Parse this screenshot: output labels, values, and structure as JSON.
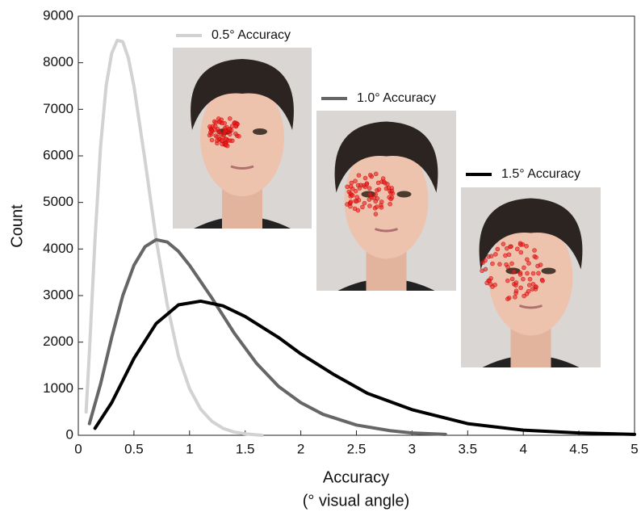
{
  "chart_data": {
    "type": "line",
    "ylabel": "Count",
    "xlabel": "Accuracy",
    "xlabel_note": "(° visual angle)",
    "xlim": [
      0,
      5
    ],
    "ylim": [
      0,
      9000
    ],
    "xticks": [
      0,
      0.5,
      1,
      1.5,
      2,
      2.5,
      3,
      3.5,
      4,
      4.5,
      5
    ],
    "yticks": [
      0,
      1000,
      2000,
      3000,
      4000,
      5000,
      6000,
      7000,
      8000,
      9000
    ],
    "grid": false,
    "series": [
      {
        "name": "0.5° Accuracy",
        "color": "#d2d2d2",
        "x": [
          0.07,
          0.1,
          0.15,
          0.2,
          0.25,
          0.3,
          0.35,
          0.4,
          0.45,
          0.5,
          0.6,
          0.7,
          0.8,
          0.9,
          1.0,
          1.1,
          1.2,
          1.3,
          1.4,
          1.5,
          1.65
        ],
        "values": [
          500,
          1800,
          4200,
          6200,
          7500,
          8200,
          8480,
          8450,
          8100,
          7500,
          5900,
          4200,
          2800,
          1700,
          1000,
          560,
          300,
          150,
          70,
          30,
          0
        ]
      },
      {
        "name": "1.0° Accuracy",
        "color": "#666666",
        "x": [
          0.1,
          0.2,
          0.3,
          0.4,
          0.5,
          0.6,
          0.7,
          0.8,
          0.9,
          1.0,
          1.2,
          1.4,
          1.6,
          1.8,
          2.0,
          2.2,
          2.5,
          2.8,
          3.0,
          3.3
        ],
        "values": [
          250,
          1100,
          2100,
          3000,
          3650,
          4050,
          4200,
          4150,
          3950,
          3650,
          2950,
          2200,
          1550,
          1050,
          700,
          450,
          220,
          100,
          50,
          20
        ]
      },
      {
        "name": "1.5° Accuracy",
        "color": "#000000",
        "x": [
          0.15,
          0.3,
          0.5,
          0.7,
          0.9,
          1.1,
          1.3,
          1.5,
          1.8,
          2.0,
          2.3,
          2.6,
          3.0,
          3.5,
          4.0,
          4.5,
          5.0
        ],
        "values": [
          150,
          700,
          1650,
          2400,
          2800,
          2880,
          2780,
          2550,
          2100,
          1750,
          1300,
          900,
          550,
          250,
          110,
          50,
          20
        ]
      }
    ]
  }
}
